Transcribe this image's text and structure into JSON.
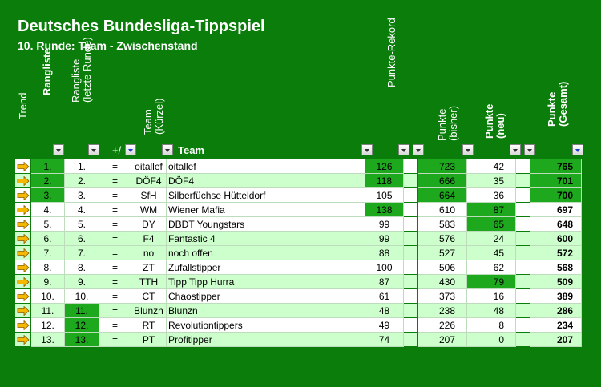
{
  "title": "Deutsches Bundesliga-Tippspiel",
  "subtitle": "10. Runde: Team - Zwischenstand",
  "headers": {
    "trend": "Trend",
    "rangliste": "Rangliste",
    "rangliste_prev_1": "Rangliste",
    "rangliste_prev_2": "(letzte Runde)",
    "plusminus": "+/-",
    "team_abbr_1": "Team",
    "team_abbr_2": "(Kürzel)",
    "team": "Team",
    "rekord": "Punkte-Rekord",
    "bisher_1": "Punkte",
    "bisher_2": "(bisher)",
    "neu_1": "Punkte",
    "neu_2": "(neu)",
    "gesamt_1": "Punkte",
    "gesamt_2": "(Gesamt)"
  },
  "colors": {
    "background": "#0a7d0a",
    "row_alt": "#ccffcc",
    "highlight": "#1ea81e",
    "trend_arrow": "#f5b800"
  },
  "rows": [
    {
      "rank": "1.",
      "prev": "1.",
      "pm": "=",
      "abbr": "oitallef",
      "team": "oitallef",
      "rec": "126",
      "bis": "723",
      "neu": "42",
      "ges": "765"
    },
    {
      "rank": "2.",
      "prev": "2.",
      "pm": "=",
      "abbr": "DÖF4",
      "team": "DÖF4",
      "rec": "118",
      "bis": "666",
      "neu": "35",
      "ges": "701"
    },
    {
      "rank": "3.",
      "prev": "3.",
      "pm": "=",
      "abbr": "SfH",
      "team": "Silberfüchse Hütteldorf",
      "rec": "105",
      "bis": "664",
      "neu": "36",
      "ges": "700"
    },
    {
      "rank": "4.",
      "prev": "4.",
      "pm": "=",
      "abbr": "WM",
      "team": "Wiener Mafia",
      "rec": "138",
      "bis": "610",
      "neu": "87",
      "ges": "697"
    },
    {
      "rank": "5.",
      "prev": "5.",
      "pm": "=",
      "abbr": "DY",
      "team": "DBDT Youngstars",
      "rec": "99",
      "bis": "583",
      "neu": "65",
      "ges": "648"
    },
    {
      "rank": "6.",
      "prev": "6.",
      "pm": "=",
      "abbr": "F4",
      "team": "Fantastic 4",
      "rec": "99",
      "bis": "576",
      "neu": "24",
      "ges": "600"
    },
    {
      "rank": "7.",
      "prev": "7.",
      "pm": "=",
      "abbr": "no",
      "team": "noch offen",
      "rec": "88",
      "bis": "527",
      "neu": "45",
      "ges": "572"
    },
    {
      "rank": "8.",
      "prev": "8.",
      "pm": "=",
      "abbr": "ZT",
      "team": "Zufallstipper",
      "rec": "100",
      "bis": "506",
      "neu": "62",
      "ges": "568"
    },
    {
      "rank": "9.",
      "prev": "9.",
      "pm": "=",
      "abbr": "TTH",
      "team": "Tipp Tipp Hurra",
      "rec": "87",
      "bis": "430",
      "neu": "79",
      "ges": "509"
    },
    {
      "rank": "10.",
      "prev": "10.",
      "pm": "=",
      "abbr": "CT",
      "team": "Chaostipper",
      "rec": "61",
      "bis": "373",
      "neu": "16",
      "ges": "389"
    },
    {
      "rank": "11.",
      "prev": "11.",
      "pm": "=",
      "abbr": "Blunzn",
      "team": "Blunzn",
      "rec": "48",
      "bis": "238",
      "neu": "48",
      "ges": "286"
    },
    {
      "rank": "12.",
      "prev": "12.",
      "pm": "=",
      "abbr": "RT",
      "team": "Revolutiontippers",
      "rec": "49",
      "bis": "226",
      "neu": "8",
      "ges": "234"
    },
    {
      "rank": "13.",
      "prev": "13.",
      "pm": "=",
      "abbr": "PT",
      "team": "Profitipper",
      "rec": "74",
      "bis": "207",
      "neu": "0",
      "ges": "207"
    }
  ]
}
